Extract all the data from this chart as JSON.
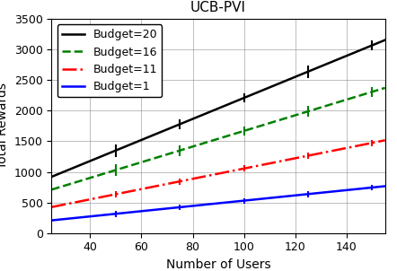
{
  "title": "UCB-PVI",
  "xlabel": "Number of Users",
  "ylabel": "Total Rewards",
  "xlim": [
    25,
    155
  ],
  "ylim": [
    0,
    3500
  ],
  "xticks": [
    40,
    60,
    80,
    100,
    120,
    140
  ],
  "yticks": [
    0,
    500,
    1000,
    1500,
    2000,
    2500,
    3000,
    3500
  ],
  "lines": [
    {
      "label": "Budget=20",
      "color": "black",
      "linestyle": "-",
      "linewidth": 1.8,
      "slope": 17.2,
      "intercept": 490,
      "error_x": [
        50,
        75,
        100,
        125,
        150
      ],
      "yerr": [
        100,
        85,
        75,
        100,
        80
      ]
    },
    {
      "label": "Budget=16",
      "color": "green",
      "linestyle": "--",
      "linewidth": 1.8,
      "slope": 12.8,
      "intercept": 390,
      "error_x": [
        50,
        75,
        100,
        125,
        150
      ],
      "yerr": [
        100,
        90,
        75,
        90,
        80
      ]
    },
    {
      "label": "Budget=11",
      "color": "red",
      "linestyle": "-.",
      "linewidth": 1.8,
      "slope": 8.4,
      "intercept": 215,
      "error_x": [
        50,
        75,
        100,
        125,
        150
      ],
      "yerr": [
        55,
        50,
        50,
        50,
        50
      ]
    },
    {
      "label": "Budget=1",
      "color": "blue",
      "linestyle": "-",
      "linewidth": 1.8,
      "slope": 4.3,
      "intercept": 100,
      "error_x": [
        50,
        75,
        100,
        125,
        150
      ],
      "yerr": [
        50,
        50,
        45,
        50,
        45
      ]
    }
  ],
  "legend_loc": "upper left",
  "grid": true,
  "title_fontsize": 11,
  "label_fontsize": 10,
  "tick_fontsize": 9,
  "legend_fontsize": 9
}
